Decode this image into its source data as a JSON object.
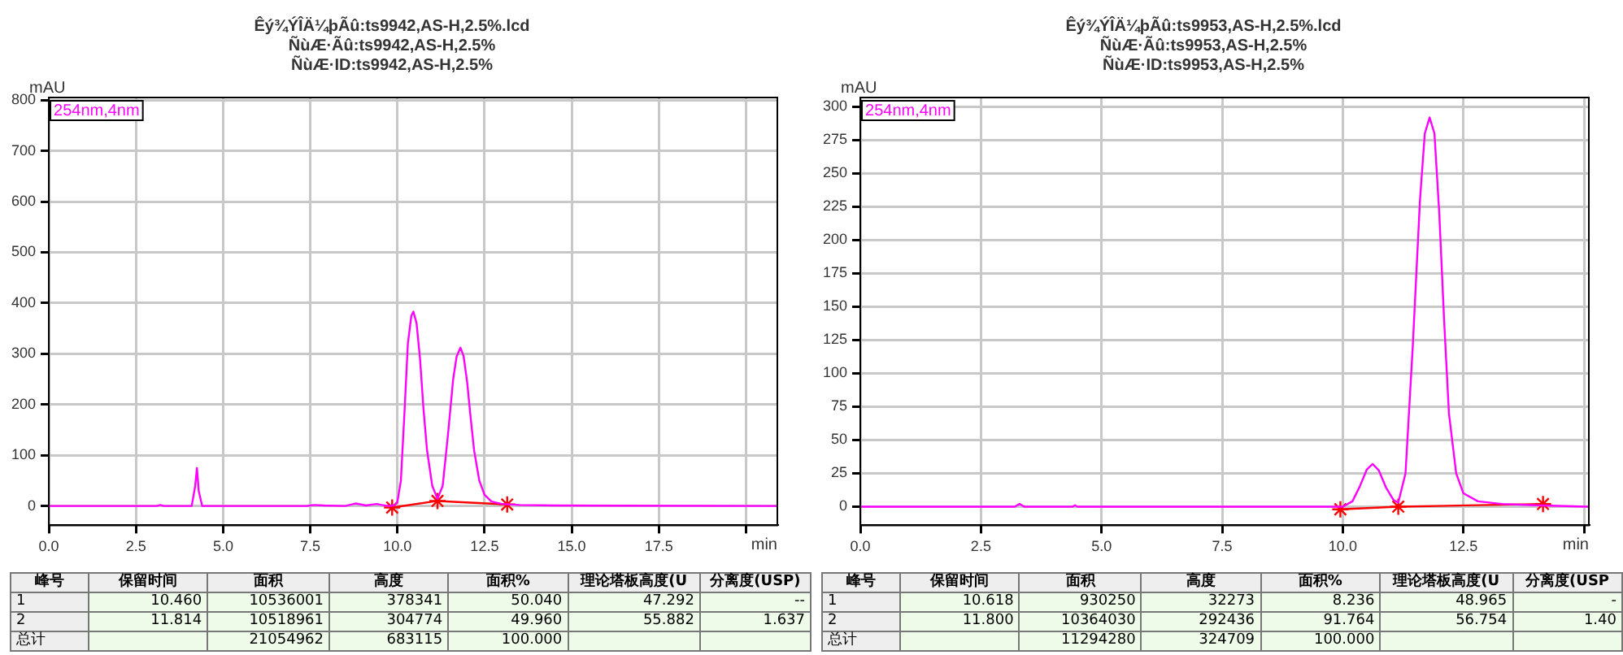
{
  "chart_data": [
    {
      "type": "line",
      "title": "Êý¾ÝÎÄ¼þÃû:ts9942,AS-H,2.5%.lcd",
      "subtitle": "ÑùÆ·Ãû:ts9942,AS-H,2.5%\nÑùÆ·ID:ts9942,AS-H,2.5%",
      "xlabel": "min",
      "ylabel": "mAU",
      "xlim": [
        0,
        20.9
      ],
      "ylim": [
        -38,
        805
      ],
      "xticks": [
        {
          "value": 0,
          "label": "0.0"
        },
        2.5,
        {
          "value": 5,
          "label": "5.0"
        },
        7.5,
        {
          "value": 10,
          "label": "10.0"
        },
        12.5,
        {
          "value": 15,
          "label": "15.0"
        },
        17.5,
        {
          "value": 20,
          "label": null
        }
      ],
      "yticks": [
        0,
        100,
        200,
        300,
        400,
        500,
        600,
        700,
        800
      ],
      "grid": true,
      "legend": "top left",
      "series": [
        {
          "name": "254nm,4nm",
          "color": "#ff00ff",
          "marker": "none",
          "x": [
            0,
            3.1,
            3.2,
            3.3,
            4.1,
            4.2,
            4.25,
            4.3,
            4.4,
            7.4,
            7.6,
            7.9,
            8.5,
            8.8,
            9.1,
            9.4,
            9.55,
            9.75,
            9.9,
            10.0,
            10.1,
            10.2,
            10.3,
            10.4,
            10.46,
            10.55,
            10.65,
            10.75,
            10.85,
            11.0,
            11.15,
            11.3,
            11.45,
            11.6,
            11.7,
            11.81,
            11.9,
            12.0,
            12.1,
            12.2,
            12.35,
            12.5,
            12.7,
            13.0,
            13.5,
            14.5,
            20.9
          ],
          "values": [
            0,
            0,
            2,
            0,
            0,
            40,
            75,
            30,
            0,
            0,
            2,
            1,
            0,
            5,
            1,
            4,
            2,
            0,
            1,
            8,
            50,
            180,
            320,
            375,
            383,
            360,
            290,
            190,
            110,
            40,
            14,
            40,
            140,
            250,
            295,
            312,
            295,
            245,
            175,
            110,
            50,
            22,
            9,
            4,
            2,
            1,
            0
          ]
        },
        {
          "color": "#ff0000",
          "marker": "cross",
          "x": [
            9.85,
            11.15,
            13.15
          ],
          "values": [
            -3,
            10,
            3
          ]
        }
      ],
      "annotations": [
        "峰号",
        "保留时间",
        "面积",
        "高度",
        "面积%",
        "理论塔板高度(U",
        "分离度(USP)",
        "1",
        "10.460",
        "10536001",
        "378341",
        "50.040",
        "47.292",
        "--",
        "2",
        "11.814",
        "10518961",
        "304774",
        "49.960",
        "55.882",
        "1.637",
        "总计",
        null,
        "21054962",
        "683115",
        "100.000",
        null,
        null
      ]
    },
    {
      "type": "line",
      "title": "Êý¾ÝÎÄ¼þÃû:ts9953,AS-H,2.5%.lcd",
      "subtitle": "ÑùÆ·Ãû:ts9953,AS-H,2.5%\nÑùÆ·ID:ts9953,AS-H,2.5%",
      "xlabel": "min",
      "ylabel": "mAU",
      "xlim": [
        0,
        15.1
      ],
      "ylim": [
        -14,
        307
      ],
      "xticks": [
        {
          "value": 0,
          "label": "0.0"
        },
        2.5,
        {
          "value": 5,
          "label": "5.0"
        },
        7.5,
        {
          "value": 10,
          "label": "10.0"
        },
        12.5,
        {
          "value": 15,
          "label": null
        }
      ],
      "yticks": [
        0,
        25,
        50,
        75,
        100,
        125,
        150,
        175,
        200,
        225,
        250,
        275,
        300
      ],
      "grid": true,
      "legend": "top left",
      "series": [
        {
          "name": "254nm,4nm",
          "color": "#ff00ff",
          "marker": "none",
          "x": [
            0,
            3.2,
            3.3,
            3.4,
            4.4,
            4.45,
            4.5,
            10.0,
            10.2,
            10.35,
            10.5,
            10.62,
            10.75,
            10.9,
            11.05,
            11.15,
            11.3,
            11.45,
            11.6,
            11.7,
            11.8,
            11.9,
            12.0,
            12.1,
            12.2,
            12.35,
            12.5,
            12.8,
            13.3,
            14.0,
            15.1
          ],
          "values": [
            0,
            0,
            2,
            0,
            0,
            1,
            0,
            0,
            4,
            15,
            28,
            32,
            27,
            14,
            5,
            3,
            25,
            120,
            230,
            280,
            292,
            280,
            220,
            140,
            70,
            25,
            10,
            4,
            2,
            1,
            0
          ]
        },
        {
          "color": "#ff0000",
          "marker": "cross",
          "x": [
            9.95,
            11.15,
            14.15
          ],
          "values": [
            -2,
            0,
            2
          ]
        }
      ],
      "annotations": [
        "峰号",
        "保留时间",
        "面积",
        "高度",
        "面积%",
        "理论塔板高度(U",
        "分离度(USP",
        "1",
        "10.618",
        "930250",
        "32273",
        "8.236",
        "48.965",
        "-",
        "2",
        "11.800",
        "10364030",
        "292436",
        "91.764",
        "56.754",
        "1.40",
        "总计",
        null,
        "11294280",
        "324709",
        "100.000",
        null,
        null
      ]
    }
  ]
}
